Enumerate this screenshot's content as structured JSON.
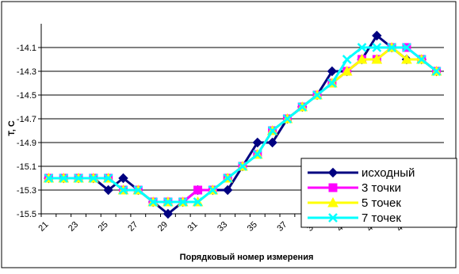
{
  "chart_data": {
    "type": "line",
    "title": "",
    "xlabel": "Порядковый номер измерения",
    "ylabel": "T, C",
    "x": [
      21,
      22,
      23,
      24,
      25,
      26,
      27,
      28,
      29,
      30,
      31,
      32,
      33,
      34,
      35,
      36,
      37,
      38,
      39,
      40,
      41,
      42,
      43,
      44,
      45,
      46,
      47
    ],
    "xticks": [
      "21",
      "23",
      "25",
      "27",
      "29",
      "31",
      "33",
      "35",
      "37",
      "39",
      "41",
      "43",
      "45"
    ],
    "yticks": [
      "-14.1",
      "-14.3",
      "-14.5",
      "-14.7",
      "-14.9",
      "-15.1",
      "-15.3",
      "-15.5"
    ],
    "ylim": [
      -15.5,
      -13.9
    ],
    "grid": "horizontal",
    "legend_position": "bottom-right",
    "series": [
      {
        "name": "исходный",
        "color": "#000080",
        "marker": "diamond",
        "values": [
          -15.2,
          -15.2,
          -15.2,
          -15.2,
          -15.3,
          -15.2,
          -15.3,
          -15.4,
          -15.5,
          -15.4,
          -15.3,
          -15.3,
          -15.3,
          -15.1,
          -14.9,
          -14.9,
          -14.7,
          -14.6,
          -14.5,
          -14.3,
          -14.3,
          -14.2,
          -14.0,
          -14.1,
          -14.2,
          -14.2,
          -14.3
        ]
      },
      {
        "name": "3 точки",
        "color": "#ff00ff",
        "marker": "square",
        "values": [
          -15.2,
          -15.2,
          -15.2,
          -15.2,
          -15.2,
          -15.3,
          -15.3,
          -15.4,
          -15.4,
          -15.4,
          -15.3,
          -15.3,
          -15.2,
          -15.1,
          -15.0,
          -14.8,
          -14.7,
          -14.6,
          -14.5,
          -14.4,
          -14.3,
          -14.2,
          -14.2,
          -14.1,
          -14.1,
          -14.2,
          -14.3
        ]
      },
      {
        "name": "5 точек",
        "color": "#ffff00",
        "marker": "triangle",
        "values": [
          -15.2,
          -15.2,
          -15.2,
          -15.2,
          -15.2,
          -15.3,
          -15.3,
          -15.4,
          -15.4,
          -15.4,
          -15.4,
          -15.3,
          -15.2,
          -15.1,
          -15.0,
          -14.8,
          -14.7,
          -14.6,
          -14.5,
          -14.4,
          -14.3,
          -14.2,
          -14.2,
          -14.1,
          -14.2,
          -14.2,
          -14.3
        ]
      },
      {
        "name": "7 точек",
        "color": "#00ffff",
        "marker": "x",
        "values": [
          -15.2,
          -15.2,
          -15.2,
          -15.2,
          -15.2,
          -15.3,
          -15.3,
          -15.4,
          -15.4,
          -15.4,
          -15.4,
          -15.3,
          -15.2,
          -15.1,
          -15.0,
          -14.8,
          -14.7,
          -14.6,
          -14.5,
          -14.4,
          -14.2,
          -14.1,
          -14.1,
          -14.1,
          -14.1,
          -14.2,
          -14.3
        ]
      }
    ]
  }
}
